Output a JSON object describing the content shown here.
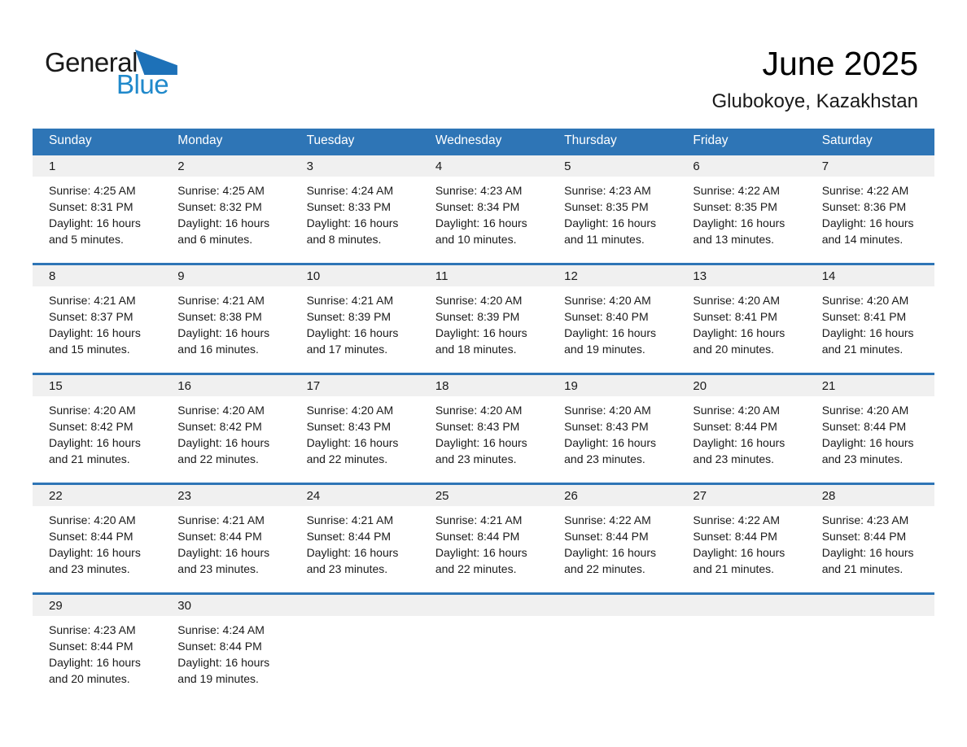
{
  "logo": {
    "part1": "General",
    "part2": "Blue"
  },
  "header": {
    "title": "June 2025",
    "subtitle": "Glubokoye, Kazakhstan"
  },
  "colors": {
    "header_bar_blue": "#2e75b6",
    "week_separator_blue": "#2e75b6",
    "day_strip_gray": "#f0f0f0",
    "logo_triangle_blue": "#1d71b8",
    "logo_text_blue": "#2089cb",
    "text_dark": "#1a1a1a"
  },
  "calendar": {
    "weekdays": [
      "Sunday",
      "Monday",
      "Tuesday",
      "Wednesday",
      "Thursday",
      "Friday",
      "Saturday"
    ],
    "weeks": [
      [
        {
          "day": "1",
          "sunrise": "Sunrise: 4:25 AM",
          "sunset": "Sunset: 8:31 PM",
          "daylight1": "Daylight: 16 hours",
          "daylight2": "and 5 minutes."
        },
        {
          "day": "2",
          "sunrise": "Sunrise: 4:25 AM",
          "sunset": "Sunset: 8:32 PM",
          "daylight1": "Daylight: 16 hours",
          "daylight2": "and 6 minutes."
        },
        {
          "day": "3",
          "sunrise": "Sunrise: 4:24 AM",
          "sunset": "Sunset: 8:33 PM",
          "daylight1": "Daylight: 16 hours",
          "daylight2": "and 8 minutes."
        },
        {
          "day": "4",
          "sunrise": "Sunrise: 4:23 AM",
          "sunset": "Sunset: 8:34 PM",
          "daylight1": "Daylight: 16 hours",
          "daylight2": "and 10 minutes."
        },
        {
          "day": "5",
          "sunrise": "Sunrise: 4:23 AM",
          "sunset": "Sunset: 8:35 PM",
          "daylight1": "Daylight: 16 hours",
          "daylight2": "and 11 minutes."
        },
        {
          "day": "6",
          "sunrise": "Sunrise: 4:22 AM",
          "sunset": "Sunset: 8:35 PM",
          "daylight1": "Daylight: 16 hours",
          "daylight2": "and 13 minutes."
        },
        {
          "day": "7",
          "sunrise": "Sunrise: 4:22 AM",
          "sunset": "Sunset: 8:36 PM",
          "daylight1": "Daylight: 16 hours",
          "daylight2": "and 14 minutes."
        }
      ],
      [
        {
          "day": "8",
          "sunrise": "Sunrise: 4:21 AM",
          "sunset": "Sunset: 8:37 PM",
          "daylight1": "Daylight: 16 hours",
          "daylight2": "and 15 minutes."
        },
        {
          "day": "9",
          "sunrise": "Sunrise: 4:21 AM",
          "sunset": "Sunset: 8:38 PM",
          "daylight1": "Daylight: 16 hours",
          "daylight2": "and 16 minutes."
        },
        {
          "day": "10",
          "sunrise": "Sunrise: 4:21 AM",
          "sunset": "Sunset: 8:39 PM",
          "daylight1": "Daylight: 16 hours",
          "daylight2": "and 17 minutes."
        },
        {
          "day": "11",
          "sunrise": "Sunrise: 4:20 AM",
          "sunset": "Sunset: 8:39 PM",
          "daylight1": "Daylight: 16 hours",
          "daylight2": "and 18 minutes."
        },
        {
          "day": "12",
          "sunrise": "Sunrise: 4:20 AM",
          "sunset": "Sunset: 8:40 PM",
          "daylight1": "Daylight: 16 hours",
          "daylight2": "and 19 minutes."
        },
        {
          "day": "13",
          "sunrise": "Sunrise: 4:20 AM",
          "sunset": "Sunset: 8:41 PM",
          "daylight1": "Daylight: 16 hours",
          "daylight2": "and 20 minutes."
        },
        {
          "day": "14",
          "sunrise": "Sunrise: 4:20 AM",
          "sunset": "Sunset: 8:41 PM",
          "daylight1": "Daylight: 16 hours",
          "daylight2": "and 21 minutes."
        }
      ],
      [
        {
          "day": "15",
          "sunrise": "Sunrise: 4:20 AM",
          "sunset": "Sunset: 8:42 PM",
          "daylight1": "Daylight: 16 hours",
          "daylight2": "and 21 minutes."
        },
        {
          "day": "16",
          "sunrise": "Sunrise: 4:20 AM",
          "sunset": "Sunset: 8:42 PM",
          "daylight1": "Daylight: 16 hours",
          "daylight2": "and 22 minutes."
        },
        {
          "day": "17",
          "sunrise": "Sunrise: 4:20 AM",
          "sunset": "Sunset: 8:43 PM",
          "daylight1": "Daylight: 16 hours",
          "daylight2": "and 22 minutes."
        },
        {
          "day": "18",
          "sunrise": "Sunrise: 4:20 AM",
          "sunset": "Sunset: 8:43 PM",
          "daylight1": "Daylight: 16 hours",
          "daylight2": "and 23 minutes."
        },
        {
          "day": "19",
          "sunrise": "Sunrise: 4:20 AM",
          "sunset": "Sunset: 8:43 PM",
          "daylight1": "Daylight: 16 hours",
          "daylight2": "and 23 minutes."
        },
        {
          "day": "20",
          "sunrise": "Sunrise: 4:20 AM",
          "sunset": "Sunset: 8:44 PM",
          "daylight1": "Daylight: 16 hours",
          "daylight2": "and 23 minutes."
        },
        {
          "day": "21",
          "sunrise": "Sunrise: 4:20 AM",
          "sunset": "Sunset: 8:44 PM",
          "daylight1": "Daylight: 16 hours",
          "daylight2": "and 23 minutes."
        }
      ],
      [
        {
          "day": "22",
          "sunrise": "Sunrise: 4:20 AM",
          "sunset": "Sunset: 8:44 PM",
          "daylight1": "Daylight: 16 hours",
          "daylight2": "and 23 minutes."
        },
        {
          "day": "23",
          "sunrise": "Sunrise: 4:21 AM",
          "sunset": "Sunset: 8:44 PM",
          "daylight1": "Daylight: 16 hours",
          "daylight2": "and 23 minutes."
        },
        {
          "day": "24",
          "sunrise": "Sunrise: 4:21 AM",
          "sunset": "Sunset: 8:44 PM",
          "daylight1": "Daylight: 16 hours",
          "daylight2": "and 23 minutes."
        },
        {
          "day": "25",
          "sunrise": "Sunrise: 4:21 AM",
          "sunset": "Sunset: 8:44 PM",
          "daylight1": "Daylight: 16 hours",
          "daylight2": "and 22 minutes."
        },
        {
          "day": "26",
          "sunrise": "Sunrise: 4:22 AM",
          "sunset": "Sunset: 8:44 PM",
          "daylight1": "Daylight: 16 hours",
          "daylight2": "and 22 minutes."
        },
        {
          "day": "27",
          "sunrise": "Sunrise: 4:22 AM",
          "sunset": "Sunset: 8:44 PM",
          "daylight1": "Daylight: 16 hours",
          "daylight2": "and 21 minutes."
        },
        {
          "day": "28",
          "sunrise": "Sunrise: 4:23 AM",
          "sunset": "Sunset: 8:44 PM",
          "daylight1": "Daylight: 16 hours",
          "daylight2": "and 21 minutes."
        }
      ],
      [
        {
          "day": "29",
          "sunrise": "Sunrise: 4:23 AM",
          "sunset": "Sunset: 8:44 PM",
          "daylight1": "Daylight: 16 hours",
          "daylight2": "and 20 minutes."
        },
        {
          "day": "30",
          "sunrise": "Sunrise: 4:24 AM",
          "sunset": "Sunset: 8:44 PM",
          "daylight1": "Daylight: 16 hours",
          "daylight2": "and 19 minutes."
        },
        null,
        null,
        null,
        null,
        null
      ]
    ]
  }
}
